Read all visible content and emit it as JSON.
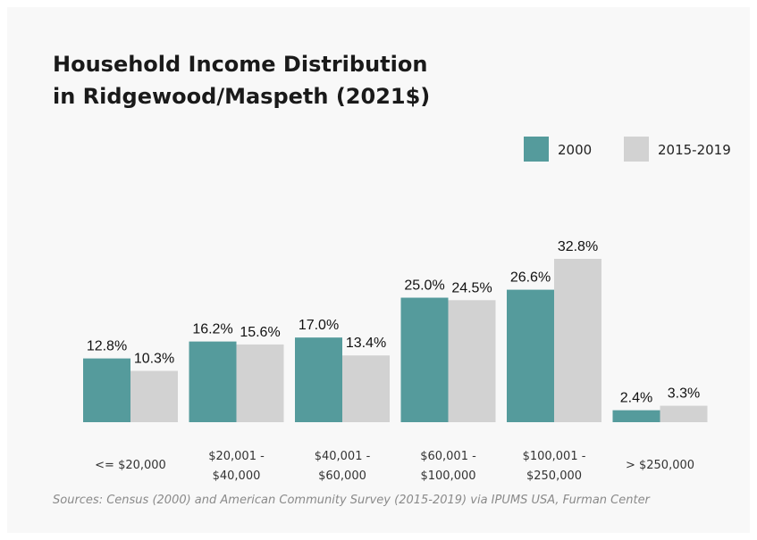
{
  "title_lines": [
    "Household Income Distribution",
    "in Ridgewood/Maspeth (2021$)"
  ],
  "source": "Sources: Census (2000) and American Community Survey (2015-2019) via IPUMS USA, Furman Center",
  "chart_data": {
    "type": "bar",
    "title": "Household Income Distribution in Ridgewood/Maspeth (2021$)",
    "categories": [
      [
        "<= $20,000"
      ],
      [
        "$20,001 -",
        "$40,000"
      ],
      [
        "$40,001 -",
        "$60,000"
      ],
      [
        "$60,001 -",
        "$100,000"
      ],
      [
        "$100,001 -",
        "$250,000"
      ],
      [
        "> $250,000"
      ]
    ],
    "series": [
      {
        "name": "2000",
        "color": "#559b9c",
        "values": [
          12.8,
          16.2,
          17.0,
          25.0,
          26.6,
          2.4
        ],
        "labels": [
          "12.8%",
          "16.2%",
          "17.0%",
          "25.0%",
          "26.6%",
          "2.4%"
        ]
      },
      {
        "name": "2015-2019",
        "color": "#d2d2d2",
        "values": [
          10.3,
          15.6,
          13.4,
          24.5,
          32.8,
          3.3
        ],
        "labels": [
          "10.3%",
          "15.6%",
          "13.4%",
          "24.5%",
          "32.8%",
          "3.3%"
        ]
      }
    ],
    "ylim": [
      0,
      32.8
    ],
    "unit": "%",
    "grid": false,
    "legend": "top-right"
  }
}
